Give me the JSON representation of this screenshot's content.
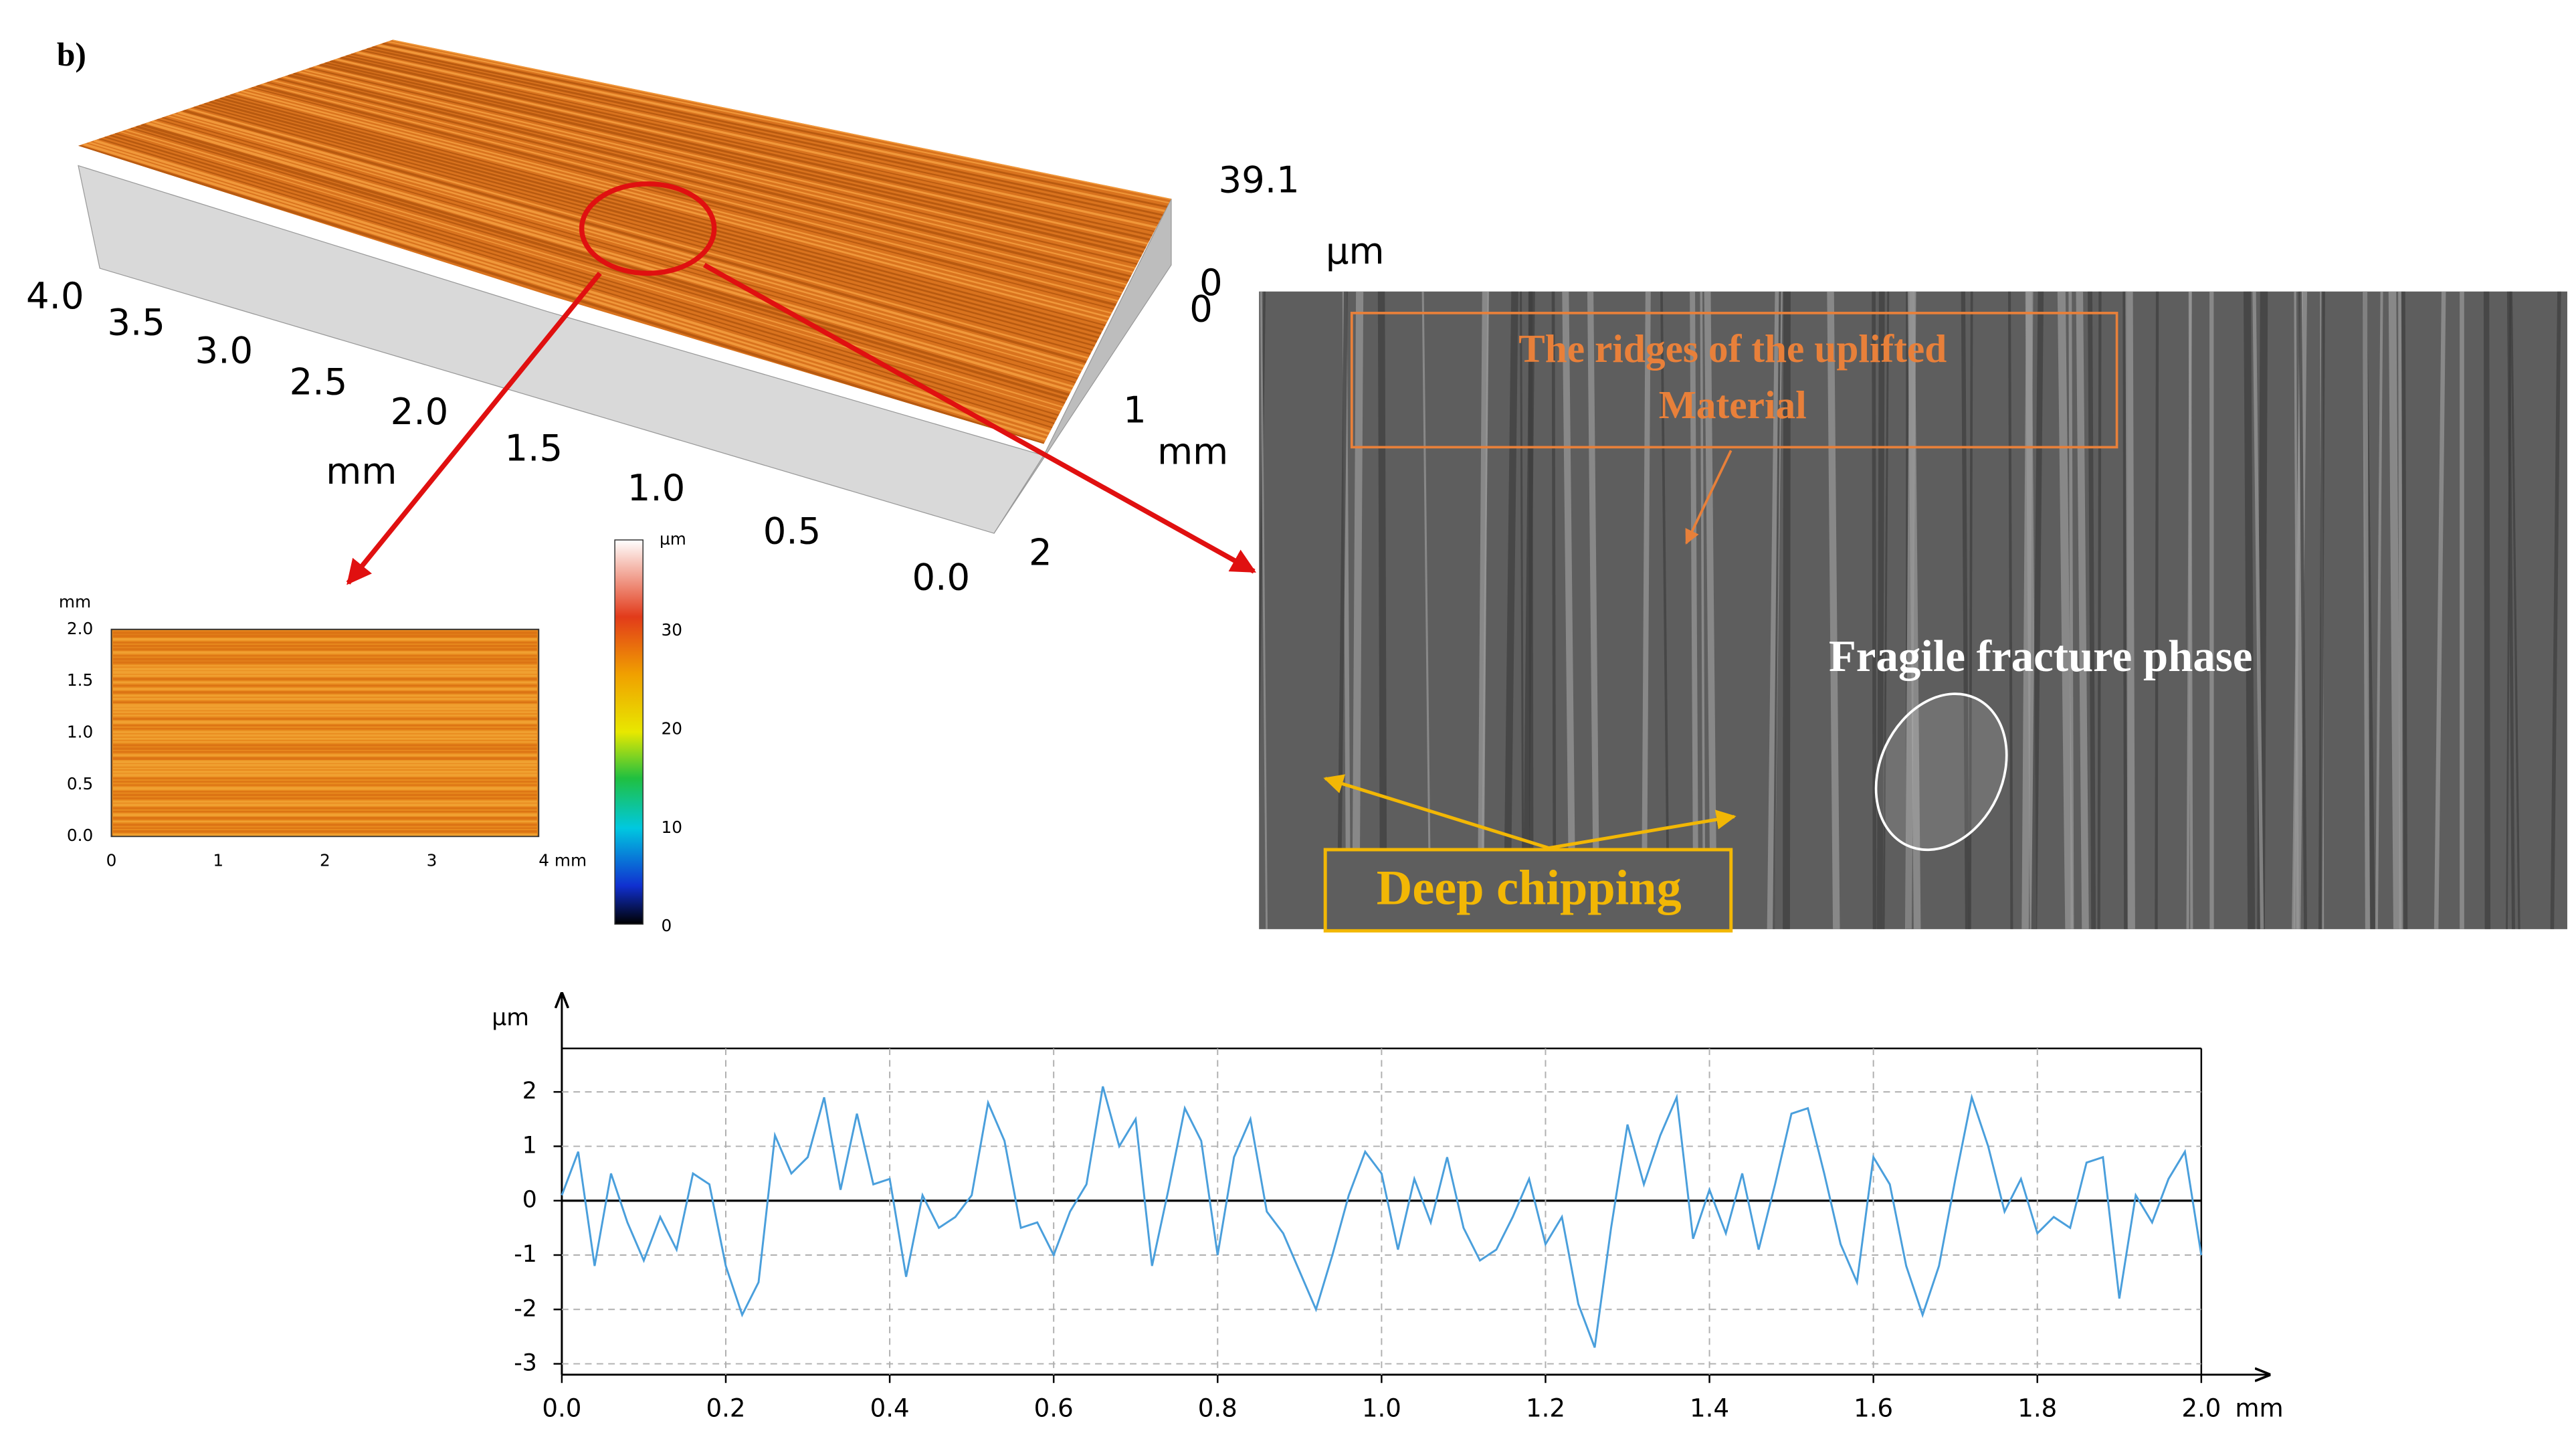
{
  "panel_label": "b)",
  "surface_3d": {
    "z_max_label": "39.1",
    "z_min_labels": [
      "0",
      "0"
    ],
    "z_unit": "µm",
    "x_tick_labels": [
      "4.0",
      "3.5",
      "3.0",
      "2.5",
      "2.0",
      "1.5",
      "1.0",
      "0.5",
      "0.0"
    ],
    "x_unit": "mm",
    "y_tick_labels": [
      "1",
      "2"
    ],
    "y_unit": "mm"
  },
  "height_map": {
    "y_unit": "mm",
    "y_tick_labels": [
      "2.0",
      "1.5",
      "1.0",
      "0.5",
      "0.0"
    ],
    "x_tick_labels": [
      "0",
      "1",
      "2",
      "3",
      "4 mm"
    ],
    "colorbar_unit": "µm",
    "colorbar_tick_labels": [
      "30",
      "20",
      "10",
      "0"
    ]
  },
  "sem_image": {
    "ridge_annotation": [
      "The ridges of the uplifted",
      "Material"
    ],
    "fracture_annotation": "Fragile fracture phase",
    "chipping_annotation": "Deep chipping"
  },
  "chart_data": {
    "type": "line",
    "xlabel": "mm",
    "ylabel": "µm",
    "color": "#4a9fdc",
    "grid": true,
    "xlim": [
      0,
      2
    ],
    "ylim": [
      -3.2,
      2.8
    ],
    "xticks": [
      {
        "value": 0,
        "label": "0.0"
      },
      0.2,
      0.4,
      0.6,
      0.8,
      {
        "value": 1,
        "label": "1.0"
      },
      1.2,
      1.4,
      1.6,
      1.8,
      {
        "value": 2,
        "label": "2.0"
      }
    ],
    "yticks": [
      2,
      1,
      0,
      -1,
      -2,
      -3
    ],
    "x": [
      0,
      0.02,
      0.04,
      0.06,
      0.08,
      0.1,
      0.12,
      0.14,
      0.16,
      0.18,
      0.2,
      0.22,
      0.24,
      0.26,
      0.28,
      0.3,
      0.32,
      0.34,
      0.36,
      0.38,
      0.4,
      0.42,
      0.44,
      0.46,
      0.48,
      0.5,
      0.52,
      0.54,
      0.56,
      0.58,
      0.6,
      0.62,
      0.64,
      0.66,
      0.68,
      0.7,
      0.72,
      0.74,
      0.76,
      0.78,
      0.8,
      0.82,
      0.84,
      0.86,
      0.88,
      0.9,
      0.92,
      0.94,
      0.96,
      0.98,
      1,
      1.02,
      1.04,
      1.06,
      1.08,
      1.1,
      1.12,
      1.14,
      1.16,
      1.18,
      1.2,
      1.22,
      1.24,
      1.26,
      1.28,
      1.3,
      1.32,
      1.34,
      1.36,
      1.38,
      1.4,
      1.42,
      1.44,
      1.46,
      1.48,
      1.5,
      1.52,
      1.54,
      1.56,
      1.58,
      1.6,
      1.62,
      1.64,
      1.66,
      1.68,
      1.7,
      1.72,
      1.74,
      1.76,
      1.78,
      1.8,
      1.82,
      1.84,
      1.86,
      1.88,
      1.9,
      1.92,
      1.94,
      1.96,
      1.98,
      2
    ],
    "values": [
      0.1,
      0.9,
      -1.2,
      0.5,
      -0.4,
      -1.1,
      -0.3,
      -0.9,
      0.5,
      0.3,
      -1.2,
      -2.1,
      -1.5,
      1.2,
      0.5,
      0.8,
      1.9,
      0.2,
      1.6,
      0.3,
      0.4,
      -1.4,
      0.1,
      -0.5,
      -0.3,
      0.1,
      1.8,
      1.1,
      -0.5,
      -0.4,
      -1.0,
      -0.2,
      0.3,
      2.1,
      1.0,
      1.5,
      -1.2,
      0.2,
      1.7,
      1.1,
      -1.0,
      0.8,
      1.5,
      -0.2,
      -0.6,
      -1.3,
      -2.0,
      -1.0,
      0.1,
      0.9,
      0.5,
      -0.9,
      0.4,
      -0.4,
      0.8,
      -0.5,
      -1.1,
      -0.9,
      -0.3,
      0.4,
      -0.8,
      -0.3,
      -1.9,
      -2.7,
      -0.5,
      1.4,
      0.3,
      1.2,
      1.9,
      -0.7,
      0.2,
      -0.6,
      0.5,
      -0.9,
      0.3,
      1.6,
      1.7,
      0.5,
      -0.8,
      -1.5,
      0.8,
      0.3,
      -1.2,
      -2.1,
      -1.2,
      0.4,
      1.9,
      1.0,
      -0.2,
      0.4,
      -0.6,
      -0.3,
      -0.5,
      0.7,
      0.8,
      -1.8,
      0.1,
      -0.4,
      0.4,
      0.9,
      -1.0
    ]
  }
}
